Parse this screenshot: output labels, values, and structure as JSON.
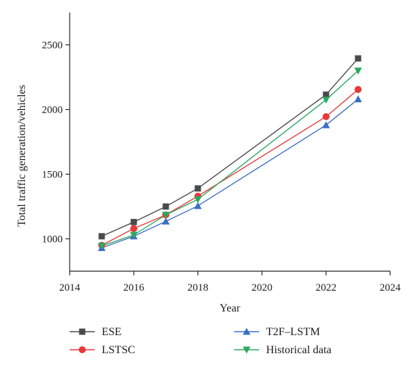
{
  "chart_data": {
    "type": "line",
    "xlabel": "Year",
    "ylabel": "Total traffic generation/vehicles",
    "xlim": [
      2014,
      2024
    ],
    "ylim": [
      750,
      2750
    ],
    "xticks": [
      2014,
      2016,
      2018,
      2020,
      2022,
      2024
    ],
    "yticks": [
      1000,
      1500,
      2000,
      2500
    ],
    "x": [
      2015,
      2016,
      2017,
      2018,
      2022,
      2023
    ],
    "grid": false,
    "legend_position": "bottom",
    "series": [
      {
        "name": "ESE",
        "values": [
          1020,
          1130,
          1250,
          1390,
          2115,
          2395
        ],
        "color": "#4a4a4a",
        "marker": "square"
      },
      {
        "name": "LSTSC",
        "values": [
          950,
          1080,
          1185,
          1330,
          1945,
          2155
        ],
        "color": "#e8393a",
        "marker": "circle"
      },
      {
        "name": "T2F–LSTM",
        "values": [
          930,
          1020,
          1135,
          1255,
          1880,
          2080
        ],
        "color": "#3a6fc4",
        "marker": "triangle-up"
      },
      {
        "name": "Historical data",
        "values": [
          945,
          1030,
          1185,
          1305,
          2075,
          2300
        ],
        "color": "#2aa860",
        "marker": "triangle-down"
      }
    ]
  }
}
